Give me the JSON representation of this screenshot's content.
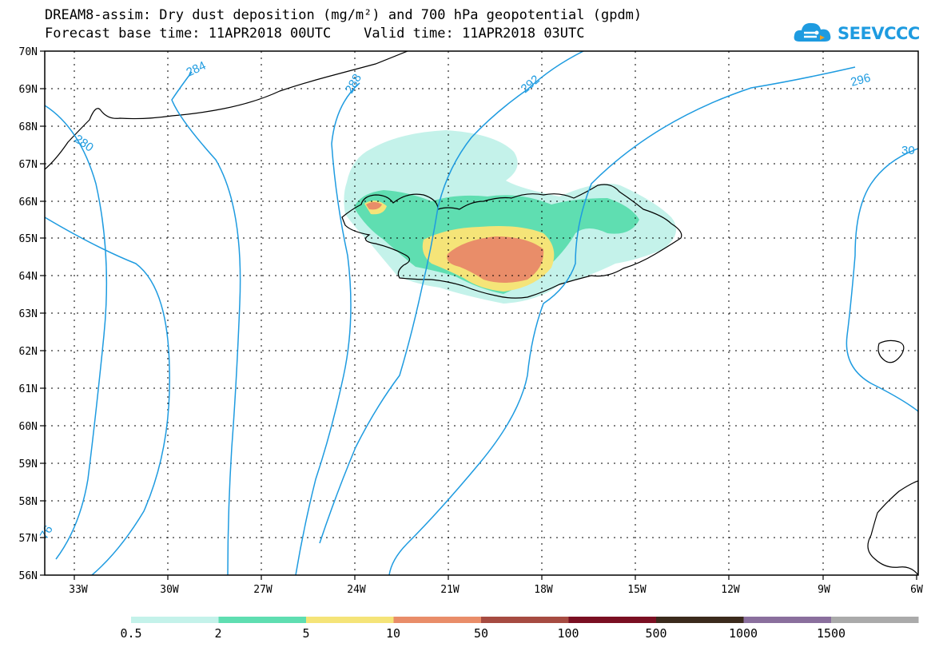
{
  "title": {
    "line1": "DREAM8-assim: Dry dust deposition (mg/m²) and 700 hPa geopotential (gpdm)",
    "line2": "Forecast base time: 11APR2018 00UTC    Valid time: 11APR2018 03UTC"
  },
  "logo": {
    "text": "SEEVCCC",
    "icon": "cloud-icon",
    "color": "#1e9be0"
  },
  "map": {
    "lat_range": [
      56,
      70
    ],
    "lon_range": [
      -34.5,
      -6
    ],
    "lat_labels": [
      "70N",
      "69N",
      "68N",
      "67N",
      "66N",
      "65N",
      "64N",
      "63N",
      "62N",
      "61N",
      "60N",
      "59N",
      "58N",
      "57N",
      "56N"
    ],
    "lon_labels": [
      "33W",
      "30W",
      "27W",
      "24W",
      "21W",
      "18W",
      "15W",
      "12W",
      "9W",
      "6W"
    ],
    "gridlines": "dotted",
    "contour_color": "#1e9be0",
    "contour_labels": [
      "284",
      "288",
      "292",
      "296",
      "280",
      "30",
      "76"
    ]
  },
  "colorbar": {
    "labels": [
      "0.5",
      "2",
      "5",
      "10",
      "50",
      "100",
      "500",
      "1000",
      "1500"
    ],
    "colors": [
      "#c4f2ea",
      "#5fdeb1",
      "#f5e478",
      "#e98d69",
      "#a64b41",
      "#7a0f22",
      "#3b2a1c",
      "#8a6f9d",
      "#aaaaaa"
    ]
  }
}
